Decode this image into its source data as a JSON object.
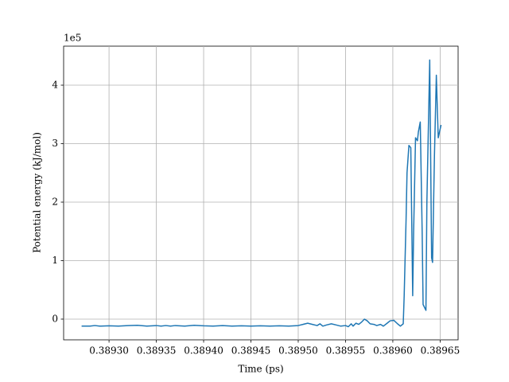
{
  "chart_data": {
    "type": "line",
    "xlabel": "Time (ps)",
    "ylabel": "Potential energy (kJ/mol)",
    "y_offset_label": "1e5",
    "x": [
      0.389271,
      0.38928,
      0.389285,
      0.38929,
      0.3893,
      0.38931,
      0.38932,
      0.38933,
      0.38934,
      0.38935,
      0.389355,
      0.38936,
      0.389365,
      0.38937,
      0.38938,
      0.38939,
      0.3894,
      0.38941,
      0.38942,
      0.38943,
      0.38944,
      0.38945,
      0.38946,
      0.38947,
      0.38948,
      0.38949,
      0.3895,
      0.389505,
      0.38951,
      0.389515,
      0.38952,
      0.389523,
      0.389526,
      0.38953,
      0.389535,
      0.38954,
      0.389545,
      0.38955,
      0.389553,
      0.389556,
      0.389558,
      0.389561,
      0.389564,
      0.389567,
      0.38957,
      0.389573,
      0.389576,
      0.38958,
      0.389583,
      0.389587,
      0.38959,
      0.389594,
      0.389597,
      0.389601,
      0.389605,
      0.389608,
      0.389611,
      0.389612,
      0.389614,
      0.389615,
      0.389617,
      0.389619,
      0.389621,
      0.389622,
      0.389624,
      0.389626,
      0.389627,
      0.389629,
      0.389631,
      0.389632,
      0.389635,
      0.389636,
      0.389639,
      0.389641,
      0.389642,
      0.389644,
      0.389646,
      0.389648,
      0.389651
    ],
    "series": [
      {
        "color": "#1f77b4",
        "values": [
          -0.12,
          -0.12,
          -0.11,
          -0.12,
          -0.115,
          -0.12,
          -0.11,
          -0.105,
          -0.12,
          -0.11,
          -0.12,
          -0.11,
          -0.12,
          -0.11,
          -0.12,
          -0.105,
          -0.115,
          -0.12,
          -0.11,
          -0.12,
          -0.115,
          -0.12,
          -0.115,
          -0.12,
          -0.115,
          -0.12,
          -0.11,
          -0.09,
          -0.07,
          -0.09,
          -0.11,
          -0.08,
          -0.12,
          -0.1,
          -0.08,
          -0.1,
          -0.12,
          -0.11,
          -0.13,
          -0.08,
          -0.12,
          -0.07,
          -0.09,
          -0.05,
          0.0,
          -0.03,
          -0.08,
          -0.09,
          -0.11,
          -0.09,
          -0.12,
          -0.07,
          -0.03,
          -0.02,
          -0.08,
          -0.12,
          -0.08,
          0.4,
          1.7,
          2.5,
          2.97,
          2.93,
          0.4,
          1.5,
          3.1,
          3.05,
          3.2,
          3.37,
          1.5,
          0.25,
          0.15,
          2.0,
          4.43,
          1.05,
          0.97,
          2.8,
          4.17,
          3.1,
          3.32
        ]
      }
    ],
    "xlim": [
      0.389252,
      0.389669
    ],
    "xticks": [
      {
        "value": 0.3893,
        "label": "0.38930"
      },
      {
        "value": 0.38935,
        "label": "0.38935"
      },
      {
        "value": 0.3894,
        "label": "0.38940"
      },
      {
        "value": 0.38945,
        "label": "0.38945"
      },
      {
        "value": 0.3895,
        "label": "0.38950"
      },
      {
        "value": 0.38955,
        "label": "0.38955"
      },
      {
        "value": 0.3896,
        "label": "0.38960"
      },
      {
        "value": 0.38965,
        "label": "0.38965"
      }
    ],
    "ylim": [
      -0.354,
      4.667
    ],
    "yticks": [
      0,
      1,
      2,
      3,
      4
    ],
    "grid": true
  }
}
